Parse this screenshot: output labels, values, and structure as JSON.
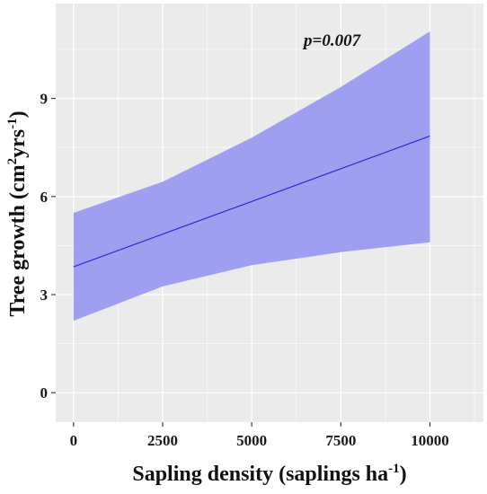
{
  "chart_data": {
    "type": "line",
    "xlabel": {
      "text": "Sapling density (saplings ha",
      "sup": "-1",
      "tail": ")"
    },
    "ylabel": {
      "text": "Tree growth (cm",
      "sup1": "2",
      "mid": "yrs",
      "sup2": "-1",
      "tail": ")"
    },
    "annotation": "p=0.007",
    "xlim": [
      -500,
      11500
    ],
    "ylim": [
      -0.9,
      11.9
    ],
    "x_ticks": [
      0,
      2500,
      5000,
      7500,
      10000
    ],
    "x_tick_labels": [
      "0",
      "2500",
      "5000",
      "7500",
      "10000"
    ],
    "y_ticks": [
      0,
      3,
      6,
      9
    ],
    "y_tick_labels": [
      "0",
      "3",
      "6",
      "9"
    ],
    "grid": true,
    "series": [
      {
        "x": [
          0,
          2500,
          5000,
          7500,
          10000
        ],
        "y": [
          3.85,
          4.85,
          5.85,
          6.85,
          7.85
        ],
        "lower": [
          2.2,
          3.25,
          3.9,
          4.3,
          4.6
        ],
        "upper": [
          5.5,
          6.45,
          7.8,
          9.35,
          11.05
        ]
      }
    ],
    "colors": {
      "line": "#2a2ad8",
      "band": "#9f9ff2",
      "panel": "#ebebeb",
      "grid": "#ffffff"
    }
  }
}
